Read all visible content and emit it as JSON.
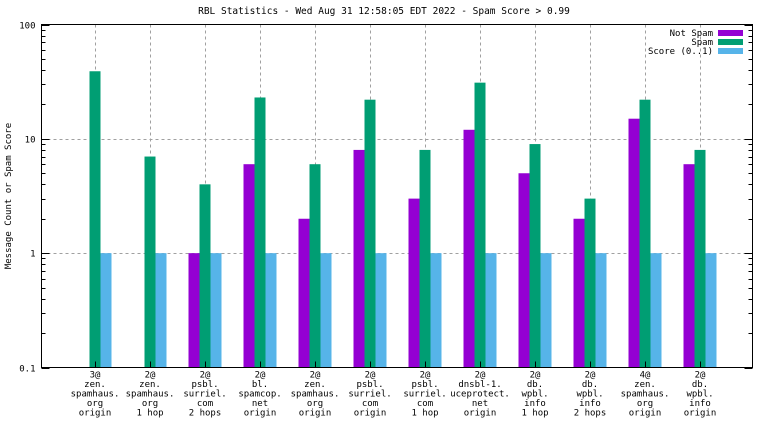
{
  "chart_data": {
    "type": "bar",
    "title": "RBL Statistics - Wed Aug 31 12:58:05 EDT 2022 - Spam Score > 0.99",
    "xlabel": "",
    "ylabel": "Message Count or Spam Score",
    "yscale": "log",
    "ylim": [
      0.1,
      100
    ],
    "yticks": [
      {
        "value": 0.1,
        "label": "0.1"
      },
      {
        "value": 1,
        "label": "1"
      },
      {
        "value": 10,
        "label": "10"
      },
      {
        "value": 100,
        "label": "100"
      }
    ],
    "grid": true,
    "legend_position": "top-right",
    "categories": [
      [
        "3@",
        "zen.",
        "spamhaus.",
        "org",
        "origin"
      ],
      [
        "2@",
        "zen.",
        "spamhaus.",
        "org",
        "1 hop"
      ],
      [
        "2@",
        "psbl.",
        "surriel.",
        "com",
        "2 hops"
      ],
      [
        "2@",
        "bl.",
        "spamcop.",
        "net",
        "origin"
      ],
      [
        "2@",
        "zen.",
        "spamhaus.",
        "org",
        "origin"
      ],
      [
        "2@",
        "psbl.",
        "surriel.",
        "com",
        "origin"
      ],
      [
        "2@",
        "psbl.",
        "surriel.",
        "com",
        "1 hop"
      ],
      [
        "2@",
        "dnsbl-1.",
        "uceprotect.",
        "net",
        "origin"
      ],
      [
        "2@",
        "db.",
        "wpbl.",
        "info",
        "1 hop"
      ],
      [
        "2@",
        "db.",
        "wpbl.",
        "info",
        "2 hops"
      ],
      [
        "4@",
        "zen.",
        "spamhaus.",
        "org",
        "origin"
      ],
      [
        "2@",
        "db.",
        "wpbl.",
        "info",
        "origin"
      ]
    ],
    "series": [
      {
        "name": "Not Spam",
        "color": "#9400d3",
        "values": [
          null,
          null,
          1,
          6,
          2,
          8,
          3,
          12,
          5,
          2,
          15,
          6
        ]
      },
      {
        "name": "Spam",
        "color": "#009e73",
        "values": [
          39,
          7,
          4,
          23,
          6,
          22,
          8,
          31,
          9,
          3,
          22,
          8
        ]
      },
      {
        "name": "Score (0..1)",
        "color": "#56b4e9",
        "values": [
          1,
          1,
          1,
          1,
          1,
          1,
          1,
          1,
          1,
          1,
          1,
          1
        ]
      }
    ]
  }
}
